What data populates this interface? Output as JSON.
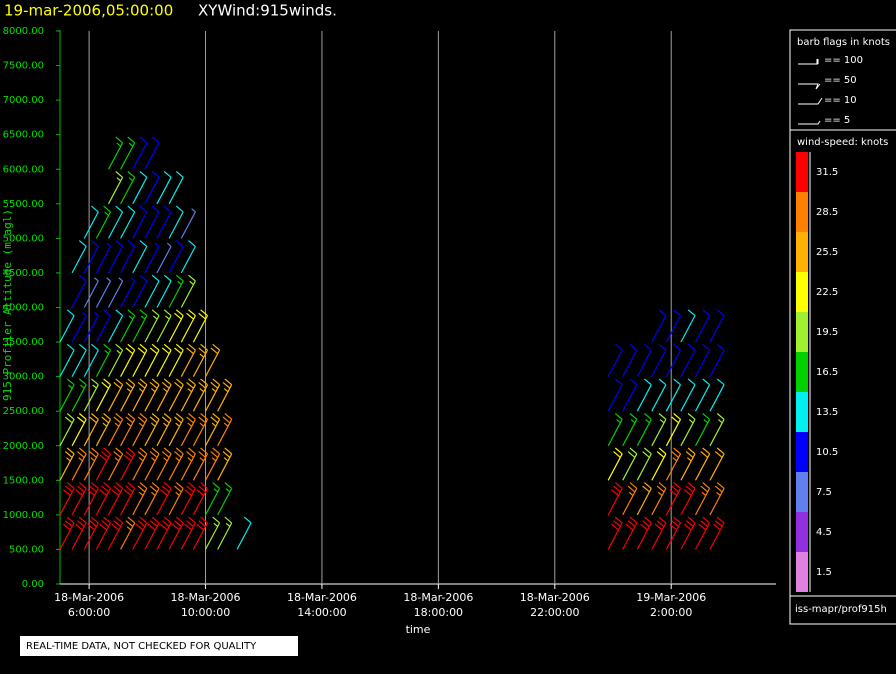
{
  "chart_data": {
    "type": "wind-barb",
    "title_time": "19-mar-2006,05:00:00",
    "title": "XYWind:915winds.",
    "x_label": "time",
    "y_label": "915 Profiler Altitude (m agl)",
    "footer": "REAL-TIME DATA, NOT CHECKED FOR QUALITY",
    "source": "iss-mapr/prof915h",
    "grid": "x",
    "xlim": [
      {
        "date": "18-Mar-2006",
        "time": "5:00:00"
      },
      {
        "date": "19-Mar-2006",
        "time": "5:36:00"
      }
    ],
    "xticks": [
      {
        "date": "18-Mar-2006",
        "time": "6:00:00"
      },
      {
        "date": "18-Mar-2006",
        "time": "10:00:00"
      },
      {
        "date": "18-Mar-2006",
        "time": "14:00:00"
      },
      {
        "date": "18-Mar-2006",
        "time": "18:00:00"
      },
      {
        "date": "18-Mar-2006",
        "time": "22:00:00"
      },
      {
        "date": "19-Mar-2006",
        "time": "2:00:00"
      }
    ],
    "ylim": [
      0,
      8000
    ],
    "yticks": [
      {
        "value": 0,
        "label": "0.00"
      },
      {
        "value": 500,
        "label": "500.00"
      },
      {
        "value": 1000,
        "label": "1000.00"
      },
      {
        "value": 1500,
        "label": "1500.00"
      },
      {
        "value": 2000,
        "label": "2000.00"
      },
      {
        "value": 2500,
        "label": "2500.00"
      },
      {
        "value": 3000,
        "label": "3000.00"
      },
      {
        "value": 3500,
        "label": "3500.00"
      },
      {
        "value": 4000,
        "label": "4000.00"
      },
      {
        "value": 4500,
        "label": "4500.00"
      },
      {
        "value": 5000,
        "label": "5000.00"
      },
      {
        "value": 5500,
        "label": "5500.00"
      },
      {
        "value": 6000,
        "label": "6000.00"
      },
      {
        "value": 6500,
        "label": "6500.00"
      },
      {
        "value": 7000,
        "label": "7000.00"
      },
      {
        "value": 7500,
        "label": "7500.00"
      },
      {
        "value": 8000,
        "label": "8000.00"
      }
    ],
    "altitudes": [
      500,
      1000,
      1500,
      2000,
      2500,
      3000,
      3500,
      4000,
      4500,
      5000,
      5500,
      6000
    ],
    "profiles": [
      {
        "date": "18-Mar-2006",
        "time": "5:00:00",
        "speeds": [
          31,
          30,
          25,
          20,
          15,
          12,
          13,
          null,
          null,
          null,
          null,
          null
        ]
      },
      {
        "date": "18-Mar-2006",
        "time": "5:25:00",
        "speeds": [
          33,
          32,
          27,
          22,
          17,
          12,
          9,
          10,
          12,
          null,
          null,
          null
        ]
      },
      {
        "date": "18-Mar-2006",
        "time": "5:50:00",
        "speeds": [
          31,
          33,
          29,
          24,
          19,
          14,
          9,
          7,
          10,
          14,
          null,
          null
        ]
      },
      {
        "date": "18-Mar-2006",
        "time": "6:15:00",
        "speeds": [
          32,
          31,
          30,
          26,
          22,
          17,
          11,
          6,
          9,
          15,
          null,
          null
        ]
      },
      {
        "date": "18-Mar-2006",
        "time": "6:40:00",
        "speeds": [
          30,
          32,
          29,
          27,
          24,
          19,
          13,
          8,
          10,
          14,
          18,
          17
        ]
      },
      {
        "date": "18-Mar-2006",
        "time": "7:05:00",
        "speeds": [
          29,
          30,
          31,
          28,
          25,
          21,
          15,
          9,
          11,
          13,
          17,
          16
        ]
      },
      {
        "date": "18-Mar-2006",
        "time": "7:30:00",
        "speeds": [
          30,
          28,
          28,
          27,
          26,
          22,
          17,
          10,
          12,
          11,
          14,
          11
        ]
      },
      {
        "date": "18-Mar-2006",
        "time": "7:55:00",
        "speeds": [
          31,
          29,
          27,
          26,
          25,
          23,
          18,
          12,
          9,
          10,
          11,
          10
        ]
      },
      {
        "date": "18-Mar-2006",
        "time": "8:20:00",
        "speeds": [
          30,
          30,
          27,
          25,
          25,
          23,
          19,
          14,
          8,
          10,
          12,
          null
        ]
      },
      {
        "date": "18-Mar-2006",
        "time": "8:45:00",
        "speeds": [
          31,
          29,
          28,
          26,
          24,
          23,
          21,
          16,
          10,
          12,
          14,
          null
        ]
      },
      {
        "date": "18-Mar-2006",
        "time": "9:10:00",
        "speeds": [
          32,
          30,
          28,
          27,
          26,
          24,
          22,
          19,
          12,
          8,
          null,
          null
        ]
      },
      {
        "date": "18-Mar-2006",
        "time": "9:35:00",
        "speeds": [
          30,
          31,
          29,
          27,
          26,
          25,
          23,
          null,
          null,
          null,
          null,
          null
        ]
      },
      {
        "date": "18-Mar-2006",
        "time": "10:00:00",
        "speeds": [
          18,
          16,
          27,
          26,
          25,
          24,
          null,
          null,
          null,
          null,
          null,
          null
        ]
      },
      {
        "date": "18-Mar-2006",
        "time": "10:25:00",
        "speeds": [
          19,
          17,
          26,
          27,
          26,
          null,
          null,
          null,
          null,
          null,
          null,
          null
        ]
      },
      {
        "date": "18-Mar-2006",
        "time": "11:05:00",
        "speeds": [
          14,
          null,
          null,
          null,
          null,
          null,
          null,
          null,
          null,
          null,
          null,
          null
        ]
      },
      {
        "date": "18-Mar-2006",
        "time": "23:50:00",
        "speeds": [
          31,
          30,
          22,
          16,
          11,
          10,
          null,
          null,
          null,
          null,
          null,
          null
        ]
      },
      {
        "date": "19-Mar-2006",
        "time": "0:20:00",
        "speeds": [
          32,
          28,
          20,
          15,
          11,
          11,
          null,
          null,
          null,
          null,
          null,
          null
        ]
      },
      {
        "date": "19-Mar-2006",
        "time": "0:50:00",
        "speeds": [
          30,
          24,
          20,
          17,
          14,
          10,
          null,
          null,
          null,
          null,
          null,
          null
        ]
      },
      {
        "date": "19-Mar-2006",
        "time": "1:20:00",
        "speeds": [
          31,
          29,
          23,
          18,
          12,
          10,
          11,
          null,
          null,
          null,
          null,
          null
        ]
      },
      {
        "date": "19-Mar-2006",
        "time": "1:50:00",
        "speeds": [
          32,
          33,
          27,
          21,
          14,
          11,
          10,
          null,
          null,
          null,
          null,
          null
        ]
      },
      {
        "date": "19-Mar-2006",
        "time": "2:20:00",
        "speeds": [
          31,
          31,
          26,
          19,
          13,
          10,
          12,
          null,
          null,
          null,
          null,
          null
        ]
      },
      {
        "date": "19-Mar-2006",
        "time": "2:50:00",
        "speeds": [
          30,
          28,
          24,
          17,
          13,
          11,
          11,
          null,
          null,
          null,
          null,
          null
        ]
      },
      {
        "date": "19-Mar-2006",
        "time": "3:20:00",
        "speeds": [
          31,
          29,
          24,
          18,
          12,
          10,
          10,
          null,
          null,
          null,
          null,
          null
        ]
      }
    ],
    "barb_legend": {
      "title": "barb flags in knots",
      "items": [
        "== 100",
        "== 50",
        "== 10",
        "== 5"
      ]
    },
    "colorbar": {
      "title": "wind-speed: knots",
      "levels": [
        31.5,
        28.5,
        25.5,
        22.5,
        19.5,
        16.5,
        13.5,
        10.5,
        7.5,
        4.5,
        1.5
      ],
      "colors": [
        "#ff0000",
        "#ff8000",
        "#ffb000",
        "#ffff00",
        "#a0f030",
        "#00d000",
        "#00f0f0",
        "#0000ff",
        "#6080f0",
        "#9030e0",
        "#e080e0"
      ]
    }
  }
}
